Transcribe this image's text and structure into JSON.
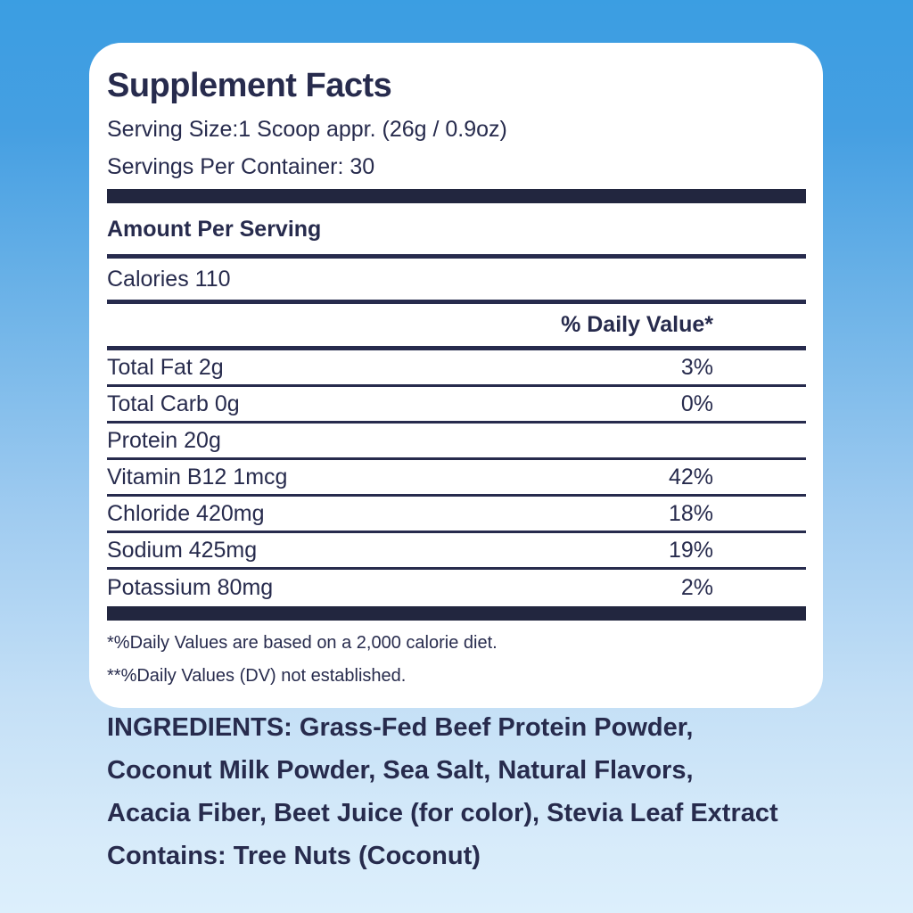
{
  "colors": {
    "background_top": "#3B9EE2",
    "background_bottom": "#DCEFFC",
    "panel_background": "#FFFFFF",
    "ink_navy": "#272B4D",
    "bar_navy": "#22263F"
  },
  "panel": {
    "title": "Supplement Facts",
    "serving_size": "Serving Size:1 Scoop appr. (26g / 0.9oz)",
    "servings_per_container": "Servings Per Container: 30",
    "amount_per_serving_label": "Amount Per Serving",
    "calories_line": "Calories 110",
    "daily_value_header": "% Daily Value*",
    "nutrient_rows": [
      {
        "label": "Total Fat 2g",
        "value": "3%"
      },
      {
        "label": "Total Carb 0g",
        "value": "0%"
      },
      {
        "label": "Protein 20g",
        "value": ""
      },
      {
        "label": "Vitamin B12 1mcg",
        "value": "42%"
      },
      {
        "label": "Chloride 420mg",
        "value": "18%"
      },
      {
        "label": "Sodium 425mg",
        "value": "19%"
      },
      {
        "label": "Potassium 80mg",
        "value": "2%"
      }
    ],
    "footnotes": [
      "*%Daily Values are based on a 2,000 calorie diet.",
      "**%Daily Values (DV) not established."
    ]
  },
  "ingredients": {
    "lines": [
      "INGREDIENTS: Grass-Fed Beef Protein Powder,",
      "Coconut Milk Powder, Sea Salt, Natural Flavors,",
      "Acacia Fiber, Beet Juice (for color), Stevia Leaf Extract"
    ],
    "contains": "Contains: Tree Nuts (Coconut)"
  }
}
